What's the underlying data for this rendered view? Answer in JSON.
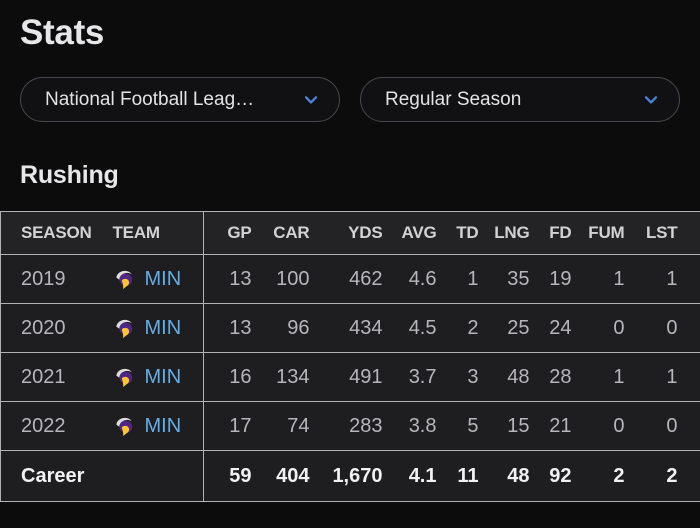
{
  "page": {
    "title": "Stats"
  },
  "filters": {
    "league": {
      "label": "National Football Leag…"
    },
    "season_type": {
      "label": "Regular Season"
    }
  },
  "section": {
    "title": "Rushing"
  },
  "table": {
    "left_headers": {
      "season": "SEASON",
      "team": "TEAM"
    },
    "stat_headers": [
      "GP",
      "CAR",
      "YDS",
      "AVG",
      "TD",
      "LNG",
      "FD",
      "FUM",
      "LST"
    ],
    "rows": [
      {
        "season": "2019",
        "team": "MIN",
        "stats": [
          "13",
          "100",
          "462",
          "4.6",
          "1",
          "35",
          "19",
          "1",
          "1"
        ]
      },
      {
        "season": "2020",
        "team": "MIN",
        "stats": [
          "13",
          "96",
          "434",
          "4.5",
          "2",
          "25",
          "24",
          "0",
          "0"
        ]
      },
      {
        "season": "2021",
        "team": "MIN",
        "stats": [
          "16",
          "134",
          "491",
          "3.7",
          "3",
          "48",
          "28",
          "1",
          "1"
        ]
      },
      {
        "season": "2022",
        "team": "MIN",
        "stats": [
          "17",
          "74",
          "283",
          "3.8",
          "5",
          "15",
          "21",
          "0",
          "0"
        ]
      }
    ],
    "footer": {
      "label": "Career",
      "stats": [
        "59",
        "404",
        "1,670",
        "4.1",
        "11",
        "48",
        "92",
        "2",
        "2"
      ]
    }
  },
  "icons": {
    "dropdown_chevron": "chevron-down-icon",
    "team_logo": "vikings-logo-icon"
  },
  "colors": {
    "accent_chevron_blue": "#4a85da",
    "team_link_blue": "#63aee7",
    "vikings_purple": "#4f2683",
    "vikings_gold": "#ffc62f",
    "table_rule_gray": "#b2b2b5",
    "page_background": "#0c0c0d"
  }
}
